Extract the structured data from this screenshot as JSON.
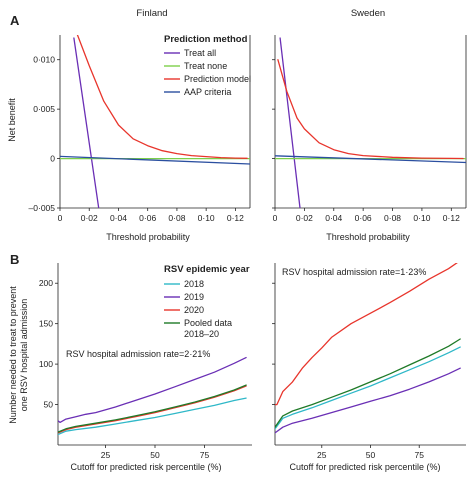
{
  "panel_a": {
    "label": "A",
    "legend_title": "Prediction method",
    "ylabel": "Net benefit",
    "xlabel": "Threshold probability",
    "legend": [
      {
        "name": "Treat all",
        "color": "#6a2fb5"
      },
      {
        "name": "Treat none",
        "color": "#7ccf4a"
      },
      {
        "name": "Prediction model",
        "color": "#e8352c"
      },
      {
        "name": "AAP criteria",
        "color": "#2b4fa0"
      }
    ]
  },
  "panel_b": {
    "label": "B",
    "legend_title": "RSV epidemic year",
    "ylabel": "Number needed to treat to prevent one RSV hospital admission",
    "xlabel": "Cutoff for predicted risk percentile (%)",
    "legend": [
      {
        "name": "2018",
        "color": "#2fb8c8"
      },
      {
        "name": "2019",
        "color": "#6a2fb5"
      },
      {
        "name": "2020",
        "color": "#e8352c"
      },
      {
        "name": "Pooled data 2018–20",
        "color": "#1f7a28"
      }
    ]
  },
  "chart_data": [
    {
      "type": "line",
      "title": "Finland",
      "xlabel": "Threshold probability",
      "ylabel": "Net benefit",
      "xlim": [
        0,
        0.13
      ],
      "ylim": [
        -0.005,
        0.0125
      ],
      "x_ticks": [
        "0",
        "0·02",
        "0·04",
        "0·06",
        "0·08",
        "0·10",
        "0·12"
      ],
      "y_ticks": [
        "–0·005",
        "0",
        "0·005",
        "0·010"
      ],
      "series": [
        {
          "name": "Treat all",
          "color": "#6a2fb5",
          "x": [
            0.0095,
            0.0265
          ],
          "y": [
            0.0122,
            -0.005
          ]
        },
        {
          "name": "Treat none",
          "color": "#7ccf4a",
          "x": [
            0,
            0.13
          ],
          "y": [
            0,
            0
          ]
        },
        {
          "name": "Prediction model",
          "color": "#e8352c",
          "x": [
            0.012,
            0.02,
            0.03,
            0.04,
            0.05,
            0.06,
            0.07,
            0.08,
            0.09,
            0.1,
            0.11,
            0.12,
            0.128
          ],
          "y": [
            0.0125,
            0.0094,
            0.0058,
            0.0034,
            0.002,
            0.0013,
            0.0008,
            0.0005,
            0.0003,
            0.0002,
            0.0001,
            5e-05,
            3e-05
          ]
        },
        {
          "name": "AAP criteria",
          "color": "#2b4fa0",
          "x": [
            0,
            0.13
          ],
          "y": [
            0.00022,
            -0.00055
          ]
        }
      ]
    },
    {
      "type": "line",
      "title": "Sweden",
      "xlabel": "Threshold probability",
      "ylabel": "",
      "xlim": [
        0,
        0.13
      ],
      "ylim": [
        -0.005,
        0.0125
      ],
      "x_ticks": [
        "0",
        "0·02",
        "0·04",
        "0·06",
        "0·08",
        "0·10",
        "0·12"
      ],
      "y_ticks": [],
      "series": [
        {
          "name": "Treat all",
          "color": "#6a2fb5",
          "x": [
            0.0035,
            0.017
          ],
          "y": [
            0.0122,
            -0.005
          ]
        },
        {
          "name": "Treat none",
          "color": "#7ccf4a",
          "x": [
            0,
            0.13
          ],
          "y": [
            0,
            0
          ]
        },
        {
          "name": "Prediction model",
          "color": "#e8352c",
          "x": [
            0.002,
            0.008,
            0.015,
            0.02,
            0.03,
            0.04,
            0.05,
            0.06,
            0.08,
            0.1,
            0.12,
            0.128
          ],
          "y": [
            0.01,
            0.0068,
            0.0041,
            0.003,
            0.0016,
            0.0009,
            0.0005,
            0.0003,
            0.00013,
            5e-05,
            2e-05,
            1e-05
          ]
        },
        {
          "name": "AAP criteria",
          "color": "#2b4fa0",
          "x": [
            0,
            0.13
          ],
          "y": [
            0.00028,
            -0.0004
          ]
        }
      ]
    },
    {
      "type": "line",
      "title": "",
      "xlabel": "Cutoff for predicted risk percentile (%)",
      "ylabel": "Number needed to treat to prevent one RSV hospital admission",
      "annotation": "RSV hospital admission rate=2·21%",
      "xlim": [
        1,
        99
      ],
      "ylim": [
        0,
        225
      ],
      "x_ticks": [
        "25",
        "50",
        "75"
      ],
      "y_ticks": [
        "50",
        "100",
        "150",
        "200"
      ],
      "series": [
        {
          "name": "2018",
          "color": "#2fb8c8",
          "x": [
            1,
            5,
            10,
            20,
            30,
            40,
            50,
            60,
            70,
            80,
            90,
            96
          ],
          "y": [
            13,
            17,
            19,
            22,
            26,
            30,
            34,
            39,
            44,
            49,
            55,
            58
          ]
        },
        {
          "name": "2019",
          "color": "#6a2fb5",
          "x": [
            1,
            2,
            5,
            10,
            15,
            20,
            30,
            40,
            50,
            60,
            70,
            80,
            90,
            96
          ],
          "y": [
            30,
            28,
            32,
            35,
            38,
            40,
            47,
            55,
            63,
            72,
            81,
            90,
            101,
            108
          ]
        },
        {
          "name": "2020",
          "color": "#e8352c",
          "x": [
            1,
            5,
            10,
            20,
            30,
            40,
            50,
            60,
            70,
            80,
            90,
            96
          ],
          "y": [
            15,
            19,
            22,
            26,
            30,
            35,
            40,
            46,
            52,
            59,
            67,
            73
          ]
        },
        {
          "name": "Pooled data 2018–20",
          "color": "#1f7a28",
          "x": [
            1,
            5,
            10,
            20,
            30,
            40,
            50,
            60,
            70,
            80,
            90,
            96
          ],
          "y": [
            16,
            20,
            23,
            27,
            31,
            36,
            41,
            47,
            53,
            60,
            68,
            74
          ]
        }
      ]
    },
    {
      "type": "line",
      "title": "",
      "xlabel": "Cutoff for predicted risk percentile (%)",
      "ylabel": "",
      "annotation": "RSV hospital admission rate=1·23%",
      "xlim": [
        1,
        99
      ],
      "ylim": [
        0,
        225
      ],
      "x_ticks": [
        "25",
        "50",
        "75"
      ],
      "y_ticks": [],
      "series": [
        {
          "name": "2018",
          "color": "#2fb8c8",
          "x": [
            1,
            5,
            10,
            20,
            30,
            40,
            50,
            60,
            70,
            80,
            90,
            96
          ],
          "y": [
            20,
            33,
            38,
            46,
            55,
            64,
            73,
            83,
            93,
            103,
            114,
            121
          ]
        },
        {
          "name": "2019",
          "color": "#6a2fb5",
          "x": [
            1,
            5,
            10,
            20,
            30,
            40,
            50,
            60,
            70,
            80,
            90,
            96
          ],
          "y": [
            15,
            22,
            27,
            33,
            40,
            47,
            54,
            61,
            69,
            78,
            88,
            95
          ]
        },
        {
          "name": "2020",
          "color": "#e8352c",
          "x": [
            1,
            2,
            5,
            10,
            15,
            20,
            25,
            30,
            40,
            50,
            60,
            70,
            80,
            90,
            96
          ],
          "y": [
            50,
            50,
            66,
            78,
            95,
            108,
            120,
            133,
            150,
            163,
            176,
            190,
            205,
            218,
            228
          ]
        },
        {
          "name": "Pooled data 2018–20",
          "color": "#1f7a28",
          "x": [
            1,
            5,
            10,
            20,
            30,
            40,
            50,
            60,
            70,
            80,
            90,
            96
          ],
          "y": [
            22,
            36,
            42,
            50,
            59,
            68,
            78,
            88,
            99,
            110,
            122,
            131
          ]
        }
      ]
    }
  ]
}
